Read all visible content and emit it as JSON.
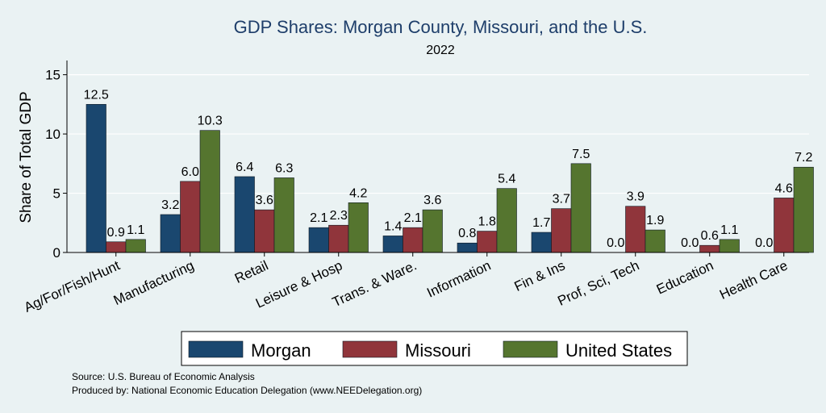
{
  "chart_data": {
    "type": "bar",
    "title": "GDP Shares: Morgan County, Missouri, and the U.S.",
    "subtitle": "2022",
    "xlabel": "",
    "ylabel": "Share of Total GDP",
    "ylim": [
      0,
      16.2
    ],
    "yticks": [
      0,
      5,
      10,
      15
    ],
    "grid": true,
    "legend_position": "bottom",
    "categories": [
      "Ag/For/Fish/Hunt",
      "Manufacturing",
      "Retail",
      "Leisure & Hosp",
      "Trans. & Ware.",
      "Information",
      "Fin & Ins",
      "Prof, Sci, Tech",
      "Education",
      "Health Care"
    ],
    "series": [
      {
        "name": "Morgan",
        "color": "#1a476f",
        "values": [
          12.5,
          3.2,
          6.4,
          2.1,
          1.4,
          0.8,
          1.7,
          0.0,
          0.0,
          0.0
        ],
        "labels": [
          "12.5",
          "3.2",
          "6.4",
          "2.1",
          "1.4",
          "0.8",
          "1.7",
          "0.0",
          "0.0",
          "0.0"
        ]
      },
      {
        "name": "Missouri",
        "color": "#90353b",
        "values": [
          0.9,
          6.0,
          3.6,
          2.3,
          2.1,
          1.8,
          3.7,
          3.9,
          0.6,
          4.6
        ],
        "labels": [
          "0.9",
          "6.0",
          "3.6",
          "2.3",
          "2.1",
          "1.8",
          "3.7",
          "3.9",
          "0.6",
          "4.6"
        ]
      },
      {
        "name": "United States",
        "color": "#55752f",
        "values": [
          1.1,
          10.3,
          6.3,
          4.2,
          3.6,
          5.4,
          7.5,
          1.9,
          1.1,
          7.2
        ],
        "labels": [
          "1.1",
          "10.3",
          "6.3",
          "4.2",
          "3.6",
          "5.4",
          "7.5",
          "1.9",
          "1.1",
          "7.2"
        ]
      }
    ],
    "notes": [
      "Source: U.S. Bureau of Economic Analysis",
      "Produced by: National Economic Education Delegation (www.NEEDelegation.org)"
    ]
  }
}
